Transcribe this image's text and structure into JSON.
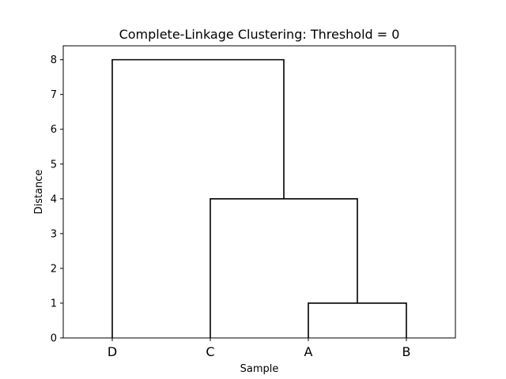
{
  "chart_data": {
    "type": "dendrogram",
    "title": "Complete-Linkage Clustering: Threshold = 0",
    "xlabel": "Sample",
    "ylabel": "Distance",
    "ylim": [
      0,
      8.4
    ],
    "yticks": [
      0,
      1,
      2,
      3,
      4,
      5,
      6,
      7,
      8
    ],
    "leaves": [
      "D",
      "C",
      "A",
      "B"
    ],
    "merges": [
      {
        "left": "A",
        "right": "B",
        "height": 1
      },
      {
        "left": "C",
        "right": "A+B",
        "height": 4
      },
      {
        "left": "D",
        "right": "C+A+B",
        "height": 8
      }
    ],
    "line_color": "#000000"
  }
}
